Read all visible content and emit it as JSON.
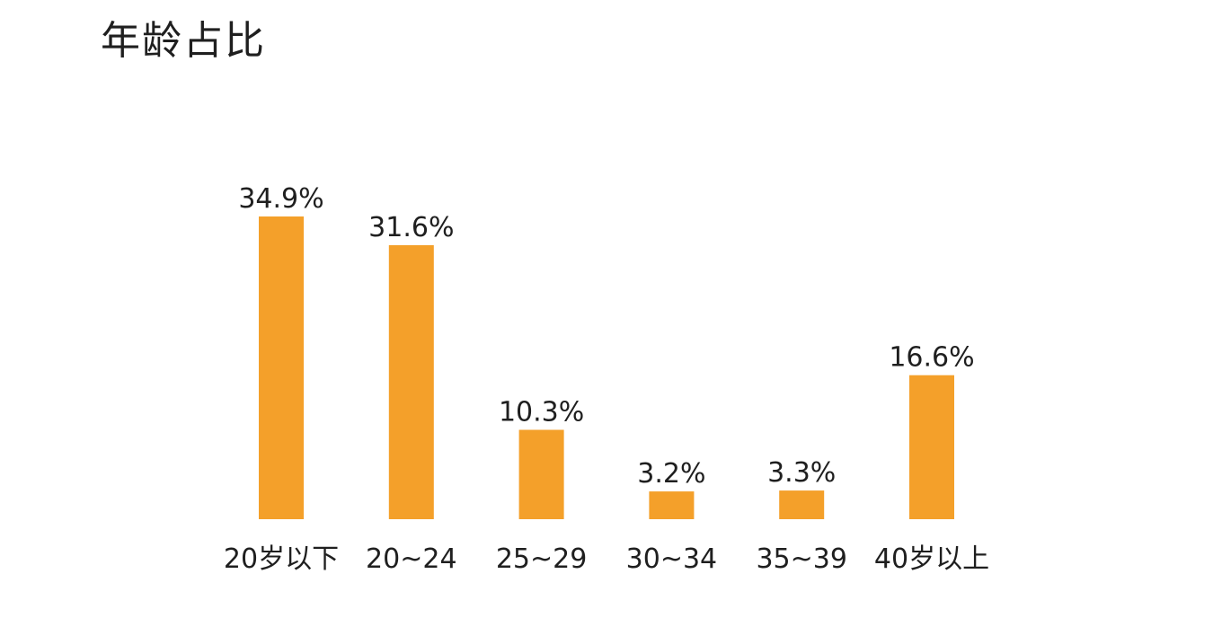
{
  "chart_data": {
    "type": "bar",
    "title": "年龄占比",
    "categories": [
      "20岁以下",
      "20~24",
      "25~29",
      "30~34",
      "35~39",
      "40岁以上"
    ],
    "values": [
      34.9,
      31.6,
      10.3,
      3.2,
      3.3,
      16.6
    ],
    "value_labels": [
      "34.9%",
      "31.6%",
      "10.3%",
      "3.2%",
      "3.3%",
      "16.6%"
    ],
    "ylim": [
      0,
      34.9
    ],
    "grid": false,
    "bar_color": "#f4a02a"
  }
}
